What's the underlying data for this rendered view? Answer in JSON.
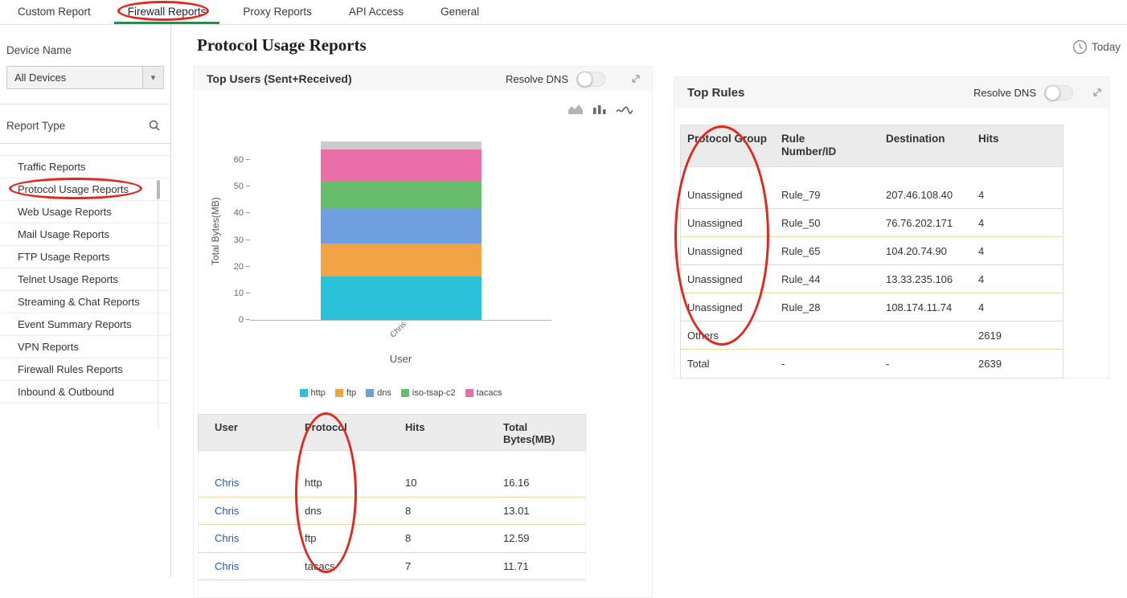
{
  "topnav": {
    "active_underline_color": "#0b9d4a",
    "tabs": [
      {
        "label": "Custom Report",
        "active": false
      },
      {
        "label": "Firewall Reports",
        "active": true
      },
      {
        "label": "Proxy Reports",
        "active": false
      },
      {
        "label": "API Access",
        "active": false
      },
      {
        "label": "General",
        "active": false
      }
    ]
  },
  "sidebar": {
    "device_name_label": "Device Name",
    "device_select_value": "All Devices",
    "report_type_label": "Report Type",
    "report_types": [
      {
        "label": "Traffic Reports",
        "selected": false
      },
      {
        "label": "Protocol Usage Reports",
        "selected": true
      },
      {
        "label": "Web Usage Reports",
        "selected": false
      },
      {
        "label": "Mail Usage Reports",
        "selected": false
      },
      {
        "label": "FTP Usage Reports",
        "selected": false
      },
      {
        "label": "Telnet Usage Reports",
        "selected": false
      },
      {
        "label": "Streaming & Chat Reports",
        "selected": false
      },
      {
        "label": "Event Summary Reports",
        "selected": false
      },
      {
        "label": "VPN Reports",
        "selected": false
      },
      {
        "label": "Firewall Rules Reports",
        "selected": false
      },
      {
        "label": "Inbound & Outbound",
        "selected": false
      }
    ]
  },
  "header": {
    "title": "Protocol Usage Reports",
    "time_filter": "Today"
  },
  "top_users_panel": {
    "title": "Top Users (Sent+Received)",
    "resolve_dns_label": "Resolve DNS"
  },
  "chart_data": {
    "type": "bar",
    "stacked": true,
    "title": "Top Users (Sent+Received)",
    "categories": [
      "Chris"
    ],
    "series": [
      {
        "name": "http",
        "color": "#2bc1d8",
        "values": [
          16.16
        ]
      },
      {
        "name": "ftp",
        "color": "#f2a444",
        "values": [
          12.59
        ]
      },
      {
        "name": "dns",
        "color": "#6f9fdf",
        "values": [
          13.01
        ]
      },
      {
        "name": "iso-tsap-c2",
        "color": "#67bd6b",
        "values": [
          10.6
        ]
      },
      {
        "name": "tacacs",
        "color": "#ea6fa9",
        "values": [
          11.71
        ]
      }
    ],
    "unlabeled_top_segment": {
      "color": "#cccccc",
      "value": 3.0
    },
    "xlabel": "User",
    "ylabel": "Total Bytes(MB)",
    "ylim": [
      0,
      67
    ],
    "yticks": [
      0,
      10,
      20,
      30,
      40,
      50,
      60
    ],
    "legend_position": "bottom",
    "grid": false
  },
  "users_table": {
    "headers": [
      "User",
      "Protocol",
      "Hits",
      "Total\nBytes(MB)"
    ],
    "rows": [
      {
        "user": "Chris",
        "protocol": "http",
        "hits": "10",
        "total_bytes": "16.16"
      },
      {
        "user": "Chris",
        "protocol": "dns",
        "hits": "8",
        "total_bytes": "13.01"
      },
      {
        "user": "Chris",
        "protocol": "ftp",
        "hits": "8",
        "total_bytes": "12.59"
      },
      {
        "user": "Chris",
        "protocol": "tacacs",
        "hits": "7",
        "total_bytes": "11.71"
      }
    ]
  },
  "top_rules_panel": {
    "title": "Top Rules",
    "resolve_dns_label": "Resolve DNS"
  },
  "rules_table": {
    "headers": [
      "Protocol Group",
      "Rule\nNumber/ID",
      "Destination",
      "Hits"
    ],
    "rows": [
      {
        "protocol_group": "Unassigned",
        "rule": "Rule_79",
        "destination": "207.46.108.40",
        "hits": "4"
      },
      {
        "protocol_group": "Unassigned",
        "rule": "Rule_50",
        "destination": "76.76.202.171",
        "hits": "4"
      },
      {
        "protocol_group": "Unassigned",
        "rule": "Rule_65",
        "destination": "104.20.74.90",
        "hits": "4"
      },
      {
        "protocol_group": "Unassigned",
        "rule": "Rule_44",
        "destination": "13.33.235.106",
        "hits": "4"
      },
      {
        "protocol_group": "Unassigned",
        "rule": "Rule_28",
        "destination": "108.174.11.74",
        "hits": "4"
      },
      {
        "protocol_group": "Others",
        "rule": "",
        "destination": "",
        "hits": "2619"
      },
      {
        "protocol_group": "Total",
        "rule": "-",
        "destination": "-",
        "hits": "2639"
      }
    ]
  },
  "annotations": {
    "color": "#e3271d",
    "ellipses": [
      {
        "target": "firewall-reports-tab"
      },
      {
        "target": "sidebar-protocol-usage-reports-item"
      },
      {
        "target": "users-table-protocol-column"
      },
      {
        "target": "rules-table-protocol-group-column"
      }
    ]
  }
}
